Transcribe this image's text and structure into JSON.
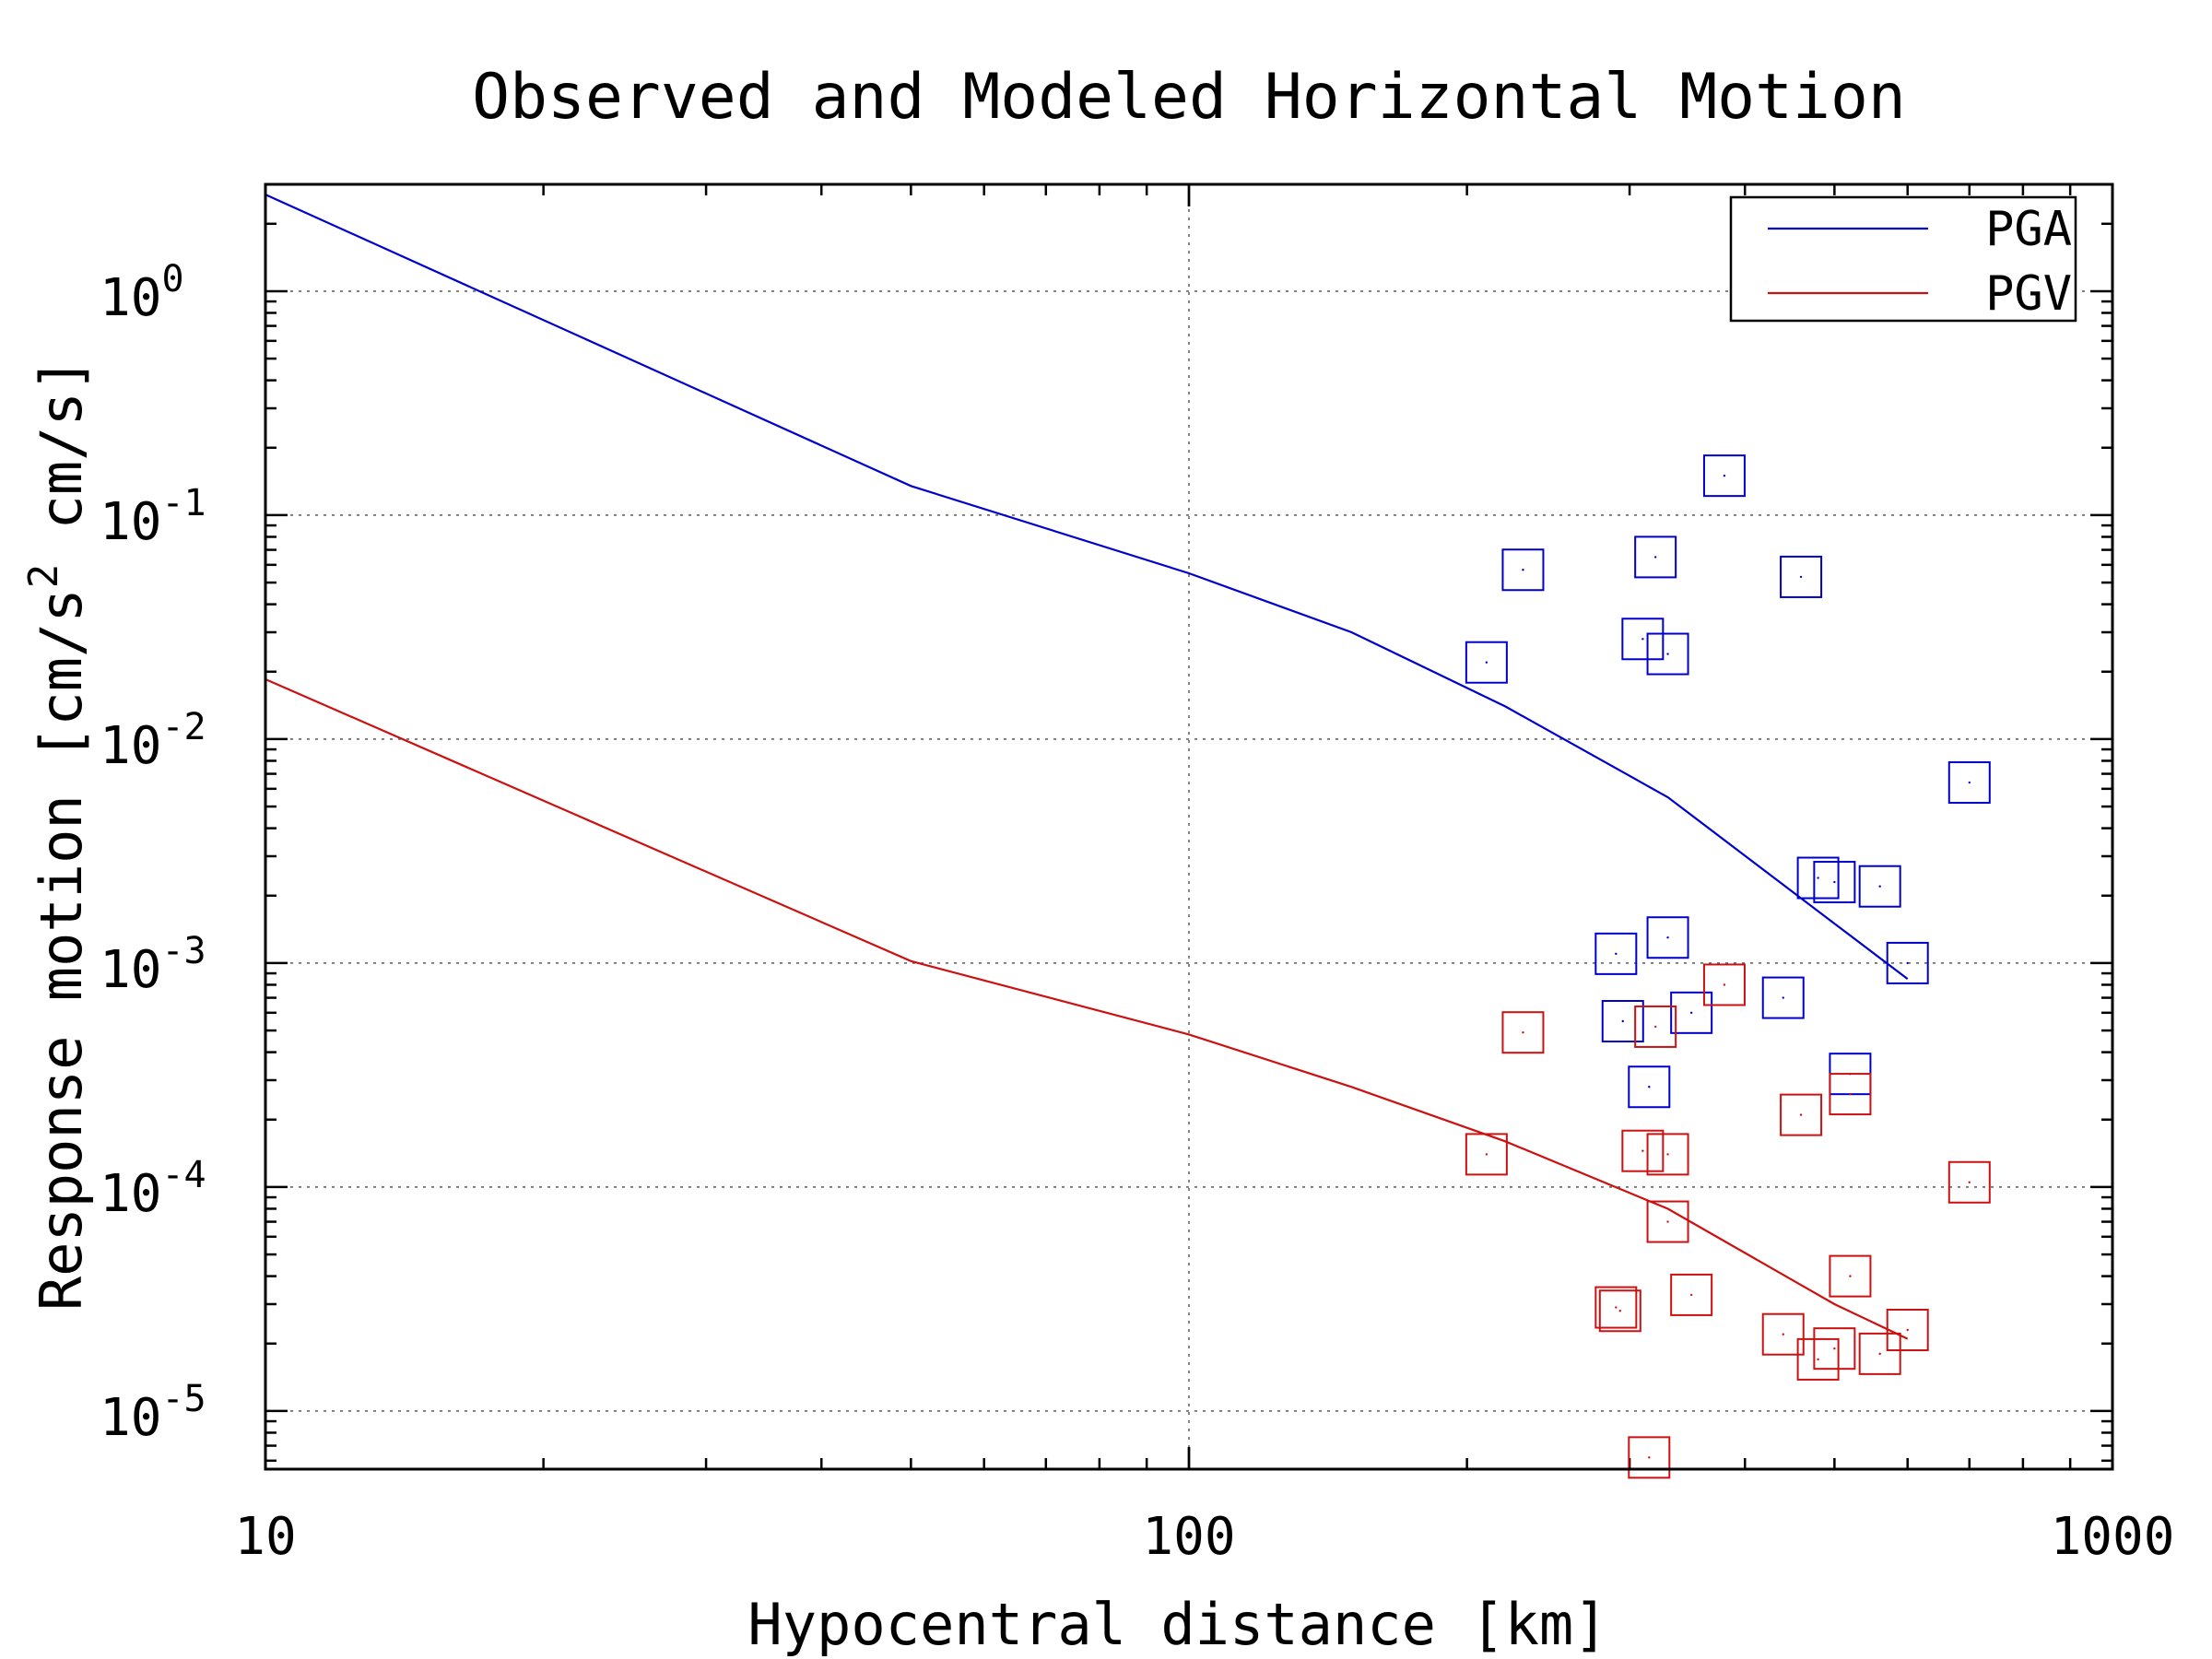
{
  "chart_data": {
    "type": "scatter",
    "title": "Observed and Modeled Horizontal Motion",
    "xlabel": "Hypocentral distance [km]",
    "ylabel": {
      "prefix": "Response motion [cm/s",
      "superscript": "2",
      "suffix": " cm/s]"
    },
    "x_scale": "log",
    "y_scale": "log",
    "xlim": [
      10,
      1000
    ],
    "ylim": [
      5.5e-06,
      3
    ],
    "x_ticks": [
      {
        "value": 10,
        "label": "10"
      },
      {
        "value": 100,
        "label": "100"
      },
      {
        "value": 1000,
        "label": "1000"
      }
    ],
    "y_ticks": [
      {
        "value": 1,
        "base": "10",
        "exp": "0"
      },
      {
        "value": 0.1,
        "base": "10",
        "exp": "-1"
      },
      {
        "value": 0.01,
        "base": "10",
        "exp": "-2"
      },
      {
        "value": 0.001,
        "base": "10",
        "exp": "-3"
      },
      {
        "value": 0.0001,
        "base": "10",
        "exp": "-4"
      },
      {
        "value": 1e-05,
        "base": "10",
        "exp": "-5"
      }
    ],
    "grid": true,
    "legend_position": "top-right",
    "series": [
      {
        "name": "PGA",
        "color": "#0000cc",
        "line": {
          "x": [
            10,
            50,
            100,
            150,
            220,
            330,
            500,
            600
          ],
          "y": [
            2.7,
            0.135,
            0.055,
            0.03,
            0.014,
            0.0055,
            0.0015,
            0.00085
          ]
        },
        "points": {
          "x": [
            210,
            230,
            310,
            320,
            330,
            380,
            460,
            290,
            295,
            330,
            315,
            350,
            440,
            520,
            480,
            500,
            560,
            600,
            700
          ],
          "y": [
            0.022,
            0.057,
            0.028,
            0.065,
            0.024,
            0.15,
            0.053,
            0.0011,
            0.00055,
            0.0013,
            0.00028,
            0.0006,
            0.0007,
            0.00032,
            0.0024,
            0.0023,
            0.0022,
            0.001,
            0.0064
          ]
        }
      },
      {
        "name": "PGV",
        "color": "#cc1111",
        "line": {
          "x": [
            10,
            50,
            100,
            150,
            220,
            330,
            500,
            600
          ],
          "y": [
            0.0185,
            0.00102,
            0.00048,
            0.00028,
            0.00016,
            8e-05,
            3e-05,
            2.1e-05
          ]
        },
        "points": {
          "x": [
            210,
            230,
            290,
            293,
            310,
            320,
            330,
            330,
            350,
            380,
            440,
            460,
            480,
            500,
            520,
            520,
            560,
            600,
            700,
            315
          ],
          "y": [
            0.00014,
            0.00049,
            2.9e-05,
            2.8e-05,
            0.000145,
            0.00052,
            0.00014,
            7e-05,
            3.3e-05,
            0.0008,
            2.2e-05,
            0.00021,
            1.7e-05,
            1.9e-05,
            4e-05,
            0.00026,
            1.8e-05,
            2.3e-05,
            0.000105,
            6.2e-06
          ]
        }
      }
    ]
  }
}
